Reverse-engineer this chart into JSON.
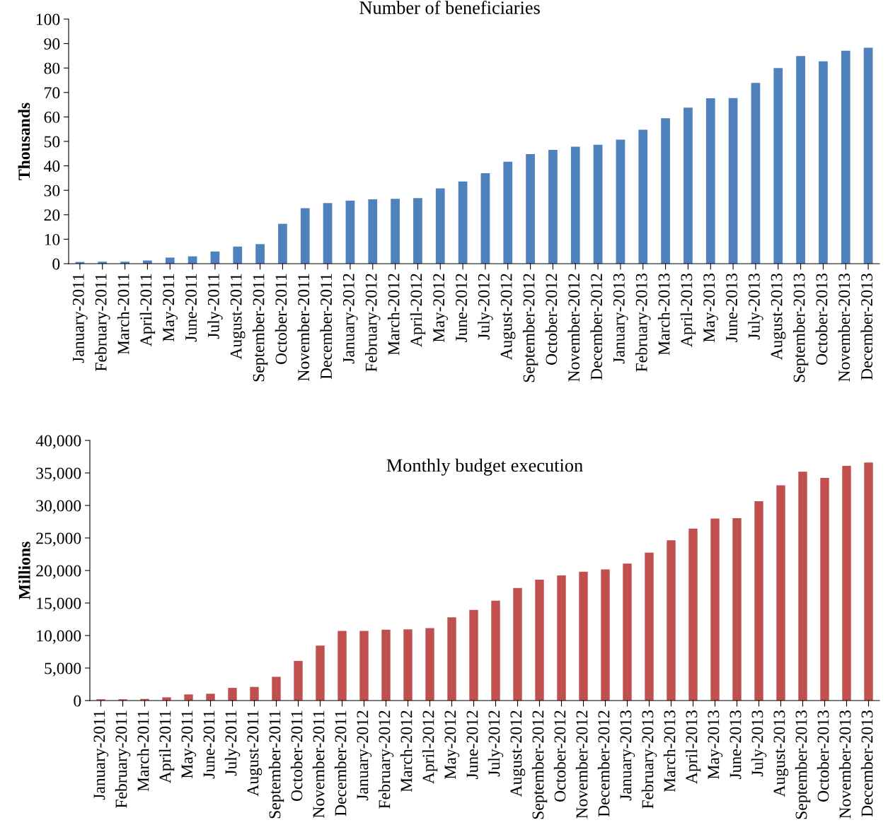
{
  "chart_data": [
    {
      "type": "bar",
      "title": "Number of beneficiaries",
      "ylabel": "Thousands",
      "categories": [
        "January-2011",
        "February-2011",
        "March-2011",
        "April-2011",
        "May-2011",
        "June-2011",
        "July-2011",
        "August-2011",
        "September-2011",
        "October-2011",
        "November-2011",
        "December-2011",
        "January-2012",
        "February-2012",
        "March-2012",
        "April-2012",
        "May-2012",
        "June-2012",
        "July-2012",
        "August-2012",
        "September-2012",
        "October-2012",
        "November-2012",
        "December-2012",
        "January-2013",
        "February-2013",
        "March-2013",
        "April-2013",
        "May-2013",
        "June-2013",
        "July-2013",
        "August-2013",
        "September-2013",
        "October-2013",
        "November-2013",
        "December-2013"
      ],
      "values": [
        0.7,
        0.8,
        0.8,
        1.3,
        2.5,
        3,
        5,
        7,
        8,
        16.3,
        22.7,
        24.8,
        25.8,
        26.3,
        26.5,
        26.8,
        30.8,
        33.6,
        37,
        41.7,
        44.8,
        46.5,
        47.8,
        48.6,
        50.7,
        54.8,
        59.5,
        63.8,
        67.6,
        67.7,
        73.9,
        80,
        84.9,
        82.7,
        87.1,
        88.3
      ],
      "color": "#4f81bd",
      "ylim": [
        0,
        100
      ],
      "yticks": [
        0,
        10,
        20,
        30,
        40,
        50,
        60,
        70,
        80,
        90,
        100
      ],
      "grid": false,
      "legend": false
    },
    {
      "type": "bar",
      "title": "Monthly budget execution",
      "ylabel": "Millions",
      "categories": [
        "January-2011",
        "February-2011",
        "March-2011",
        "April-2011",
        "May-2011",
        "June-2011",
        "July-2011",
        "August-2011",
        "September-2011",
        "October-2011",
        "November-2011",
        "December-2011",
        "January-2012",
        "February-2012",
        "March-2012",
        "April-2012",
        "May-2012",
        "June-2012",
        "July-2012",
        "August-2012",
        "September-2012",
        "October-2012",
        "November-2012",
        "December-2012",
        "January-2013",
        "February-2013",
        "March-2013",
        "April-2013",
        "May-2013",
        "June-2013",
        "July-2013",
        "August-2013",
        "September-2013",
        "October-2013",
        "November-2013",
        "December-2013"
      ],
      "values": [
        200,
        200,
        250,
        500,
        950,
        1050,
        1950,
        2100,
        3650,
        6100,
        8450,
        10700,
        10700,
        10900,
        10950,
        11150,
        12800,
        13950,
        15350,
        17300,
        18600,
        19250,
        19800,
        20150,
        21050,
        22750,
        24650,
        26450,
        28000,
        28050,
        30650,
        33100,
        35200,
        34250,
        36100,
        36600
      ],
      "color": "#c0504d",
      "ylim": [
        0,
        40000
      ],
      "yticks": [
        0,
        {
          "value": 5000,
          "label": "5,000"
        },
        {
          "value": 10000,
          "label": "10,000"
        },
        {
          "value": 15000,
          "label": "15,000"
        },
        {
          "value": 20000,
          "label": "20,000"
        },
        {
          "value": 25000,
          "label": "25,000"
        },
        {
          "value": 30000,
          "label": "30,000"
        },
        {
          "value": 35000,
          "label": "35,000"
        },
        {
          "value": 40000,
          "label": "40,000"
        }
      ],
      "grid": false,
      "legend": false
    }
  ]
}
